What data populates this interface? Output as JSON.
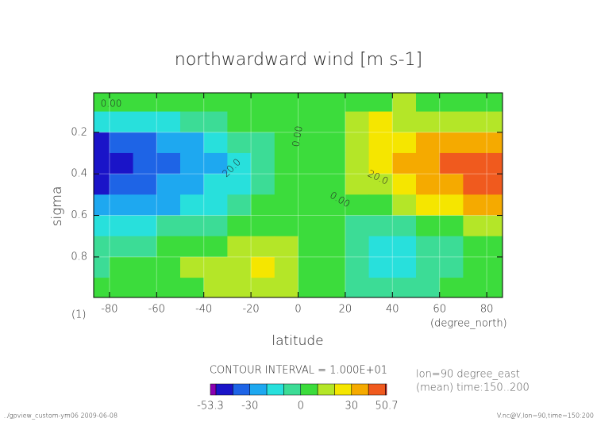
{
  "chart_data": {
    "type": "contour",
    "title": "northwardward wind [m s-1]",
    "x_label": "latitude",
    "y_label": "sigma",
    "y_unit": "(1)",
    "x_unit": "(degree_north)",
    "x": [
      -85,
      -75,
      -65,
      -55,
      -45,
      -35,
      -25,
      -15,
      -5,
      5,
      15,
      25,
      35,
      45,
      55,
      65,
      75,
      85
    ],
    "y": [
      0.05,
      0.15,
      0.25,
      0.35,
      0.45,
      0.55,
      0.65,
      0.75,
      0.85,
      0.95
    ],
    "z": [
      [
        3,
        3,
        2,
        2,
        1,
        1,
        2,
        3,
        4,
        3,
        2,
        5,
        8,
        10,
        8,
        6,
        5,
        4
      ],
      [
        -15,
        -15,
        -14,
        -12,
        -8,
        -3,
        2,
        4,
        3,
        2,
        1,
        12,
        22,
        16,
        14,
        13,
        12,
        12
      ],
      [
        -42,
        -40,
        -35,
        -30,
        -25,
        -18,
        -10,
        -4,
        2,
        1,
        8,
        18,
        24,
        28,
        32,
        35,
        35,
        35
      ],
      [
        -48,
        -45,
        -38,
        -32,
        -27,
        -22,
        -15,
        -5,
        2,
        2,
        8,
        18,
        24,
        30,
        36,
        40,
        42,
        45
      ],
      [
        -45,
        -40,
        -35,
        -30,
        -25,
        -20,
        -12,
        -4,
        2,
        3,
        6,
        12,
        18,
        24,
        32,
        38,
        42,
        42
      ],
      [
        -30,
        -28,
        -25,
        -22,
        -18,
        -12,
        -6,
        0,
        3,
        2,
        3,
        5,
        9,
        14,
        20,
        26,
        30,
        30
      ],
      [
        -18,
        -16,
        -14,
        -10,
        -6,
        -2,
        2,
        6,
        8,
        4,
        1,
        -5,
        -6,
        -4,
        0,
        6,
        12,
        14
      ],
      [
        -8,
        -6,
        -4,
        0,
        4,
        8,
        12,
        14,
        12,
        5,
        0,
        -8,
        -12,
        -12,
        -8,
        -2,
        4,
        6
      ],
      [
        -2,
        0,
        2,
        6,
        10,
        14,
        18,
        22,
        14,
        6,
        0,
        -10,
        -16,
        -14,
        -10,
        -5,
        2,
        4
      ],
      [
        2,
        3,
        4,
        6,
        8,
        10,
        12,
        14,
        10,
        6,
        2,
        -2,
        -6,
        -5,
        -3,
        0,
        3,
        4
      ]
    ],
    "xlim": [
      -86.7,
      86.7
    ],
    "ylim": [
      0.995,
      0.01
    ],
    "xticks": [
      -80,
      -60,
      -40,
      -20,
      0,
      20,
      40,
      60,
      80
    ],
    "yticks": [
      0.2,
      0.4,
      0.6,
      0.8
    ],
    "grid": true,
    "annotations": [
      "0.00",
      "0.00",
      "20.0",
      "20.0",
      "0.00"
    ],
    "colorbar": {
      "levels": [
        -53.3,
        -50,
        -40,
        -30,
        -20,
        -10,
        0,
        10,
        20,
        30,
        40,
        50,
        50.7
      ],
      "colors": [
        "#8a00b0",
        "#1a14c8",
        "#1e64e6",
        "#1ea8f0",
        "#28e0dc",
        "#3cdc96",
        "#3cdc3c",
        "#b4e628",
        "#f5e600",
        "#f5aa00",
        "#f05a1e",
        "#e61e1e"
      ],
      "ticks": [
        -53.3,
        -30,
        0,
        30,
        50.7
      ]
    },
    "contour_interval": "CONTOUR INTERVAL = 1.000E+01",
    "info": [
      "lon=90 degree_east",
      "(mean) time:150..200"
    ],
    "footer_left": "../gpview_custom-ym06  2009-06-08",
    "footer_right": "V.nc@V,lon=90,time=150:200"
  }
}
